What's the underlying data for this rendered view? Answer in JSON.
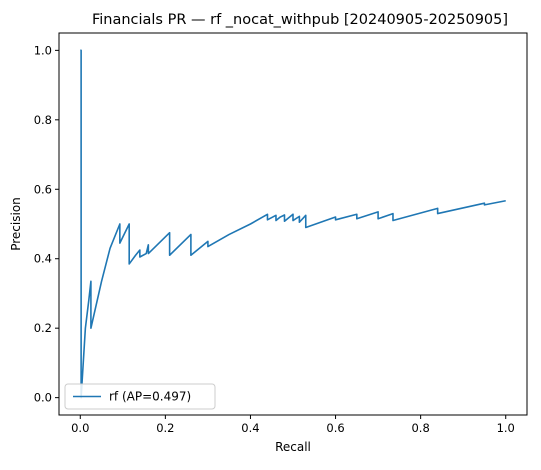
{
  "chart_data": {
    "type": "line",
    "title": "Financials PR — rf _nocat_withpub [20240905-20250905]",
    "xlabel": "Recall",
    "ylabel": "Precision",
    "xlim": [
      -0.05,
      1.05
    ],
    "ylim": [
      -0.05,
      1.05
    ],
    "xticks": [
      0.0,
      0.2,
      0.4,
      0.6,
      0.8,
      1.0
    ],
    "yticks": [
      0.0,
      0.2,
      0.4,
      0.6,
      0.8,
      1.0
    ],
    "xtick_labels": [
      "0.0",
      "0.2",
      "0.4",
      "0.6",
      "0.8",
      "1.0"
    ],
    "ytick_labels": [
      "0.0",
      "0.2",
      "0.4",
      "0.6",
      "0.8",
      "1.0"
    ],
    "grid": false,
    "legend": {
      "placement": "lower-left",
      "entries": [
        "rf (AP=0.497)"
      ]
    },
    "colors": {
      "series": "#1f77b4"
    },
    "series": [
      {
        "name": "rf (AP=0.497)",
        "x": [
          0.0,
          0.002,
          0.002,
          0.004,
          0.012,
          0.02,
          0.025,
          0.025,
          0.05,
          0.07,
          0.093,
          0.093,
          0.115,
          0.115,
          0.13,
          0.14,
          0.14,
          0.155,
          0.16,
          0.16,
          0.21,
          0.21,
          0.26,
          0.26,
          0.3,
          0.3,
          0.35,
          0.4,
          0.44,
          0.44,
          0.46,
          0.46,
          0.47,
          0.48,
          0.48,
          0.5,
          0.5,
          0.515,
          0.515,
          0.53,
          0.53,
          0.6,
          0.6,
          0.65,
          0.65,
          0.7,
          0.7,
          0.735,
          0.735,
          0.84,
          0.84,
          0.95,
          0.95,
          1.0
        ],
        "y": [
          1.0,
          1.0,
          0.0,
          0.04,
          0.2,
          0.28,
          0.335,
          0.2,
          0.335,
          0.43,
          0.5,
          0.445,
          0.5,
          0.385,
          0.41,
          0.425,
          0.405,
          0.415,
          0.44,
          0.415,
          0.475,
          0.41,
          0.47,
          0.41,
          0.45,
          0.435,
          0.47,
          0.5,
          0.528,
          0.512,
          0.525,
          0.51,
          0.52,
          0.526,
          0.508,
          0.528,
          0.51,
          0.522,
          0.505,
          0.525,
          0.49,
          0.52,
          0.512,
          0.528,
          0.515,
          0.535,
          0.515,
          0.53,
          0.51,
          0.545,
          0.53,
          0.56,
          0.555,
          0.567
        ]
      }
    ]
  }
}
